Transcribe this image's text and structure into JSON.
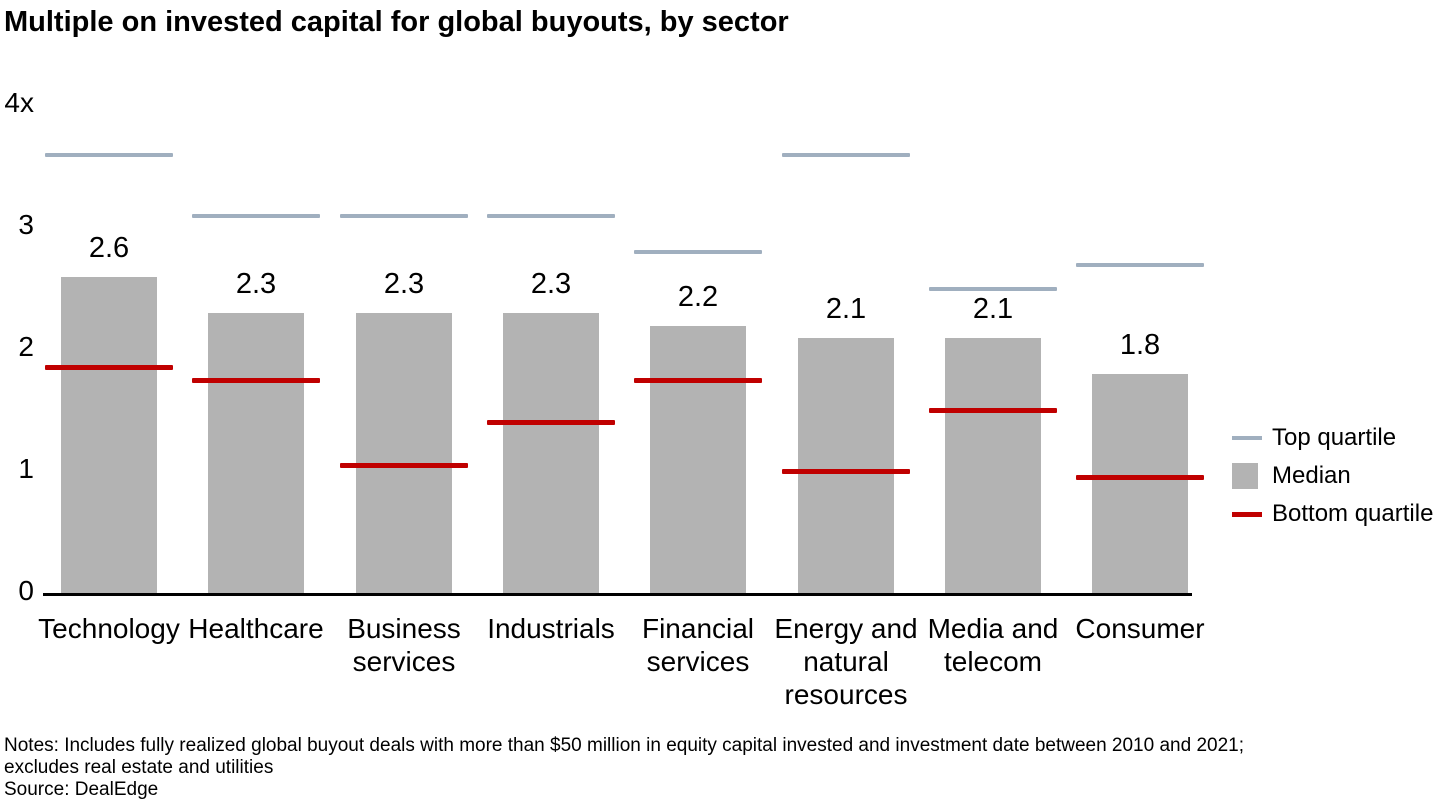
{
  "title": "Multiple on invested capital for global buyouts, by sector",
  "chart_data": {
    "type": "bar",
    "title": "Multiple on invested capital for global buyouts, by sector",
    "categories": [
      "Technology",
      "Healthcare",
      "Business\nservices",
      "Industrials",
      "Financial\nservices",
      "Energy and\nnatural\nresources",
      "Media and\ntelecom",
      "Consumer"
    ],
    "series": [
      {
        "name": "Top quartile",
        "type": "tick-line",
        "color": "#a0afbf",
        "values": [
          3.6,
          3.1,
          3.1,
          3.1,
          2.8,
          3.6,
          2.5,
          2.7
        ]
      },
      {
        "name": "Median",
        "type": "bar",
        "color": "#b3b3b3",
        "values": [
          2.6,
          2.3,
          2.3,
          2.3,
          2.2,
          2.1,
          2.1,
          1.8
        ]
      },
      {
        "name": "Bottom quartile",
        "type": "tick-line",
        "color": "#c00000",
        "values": [
          1.85,
          1.75,
          1.05,
          1.4,
          1.75,
          1.0,
          1.5,
          0.95
        ]
      }
    ],
    "bar_labels": [
      "2.6",
      "2.3",
      "2.3",
      "2.3",
      "2.2",
      "2.1",
      "2.1",
      "1.8"
    ],
    "ylim": [
      0,
      4
    ],
    "yticks": [
      {
        "value": 0,
        "label": "0"
      },
      {
        "value": 1,
        "label": "1"
      },
      {
        "value": 2,
        "label": "2"
      },
      {
        "value": 3,
        "label": "3"
      },
      {
        "value": 4,
        "label": "4x"
      }
    ],
    "grid": false,
    "legend_position": "right"
  },
  "legend": {
    "items": [
      {
        "label": "Top quartile",
        "swatch": "line",
        "color": "#a0afbf"
      },
      {
        "label": "Median",
        "swatch": "square",
        "color": "#b3b3b3"
      },
      {
        "label": "Bottom quartile",
        "swatch": "line",
        "color": "#c00000"
      }
    ]
  },
  "notes": {
    "lines": [
      "Notes: Includes fully realized global buyout deals with more than $50 million in equity capital invested and investment date between 2010 and 2021;",
      "excludes real estate and utilities"
    ],
    "source": "Source: DealEdge"
  }
}
